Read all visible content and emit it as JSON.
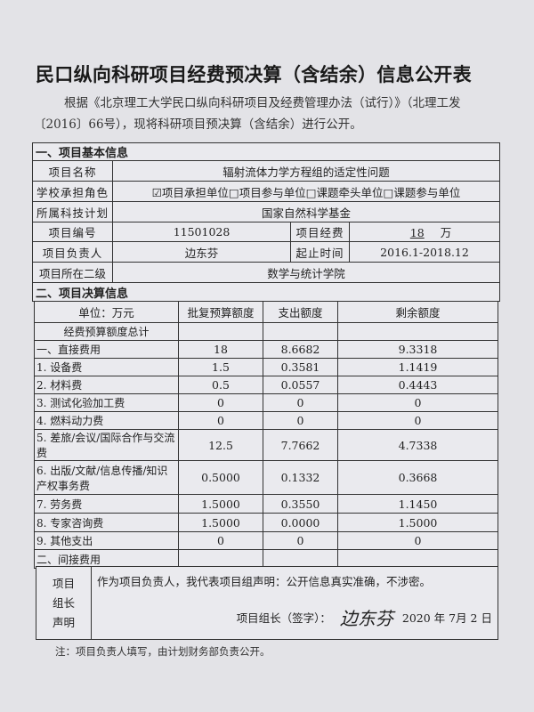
{
  "title": "民口纵向科研项目经费预决算（含结余）信息公开表",
  "intro": "根据《北京理工大学民口纵向科研项目及经费管理办法（试行）》（北理工发〔2016〕66号），现将科研项目预决算（含结余）进行公开。",
  "section1": {
    "heading": "一、项目基本信息",
    "name_label": "项目名称",
    "name": "辐射流体力学方程组的适定性问题",
    "role_label": "学校承担角色",
    "roles": [
      {
        "label": "项目承担单位",
        "checked": true
      },
      {
        "label": "项目参与单位",
        "checked": false
      },
      {
        "label": "课题牵头单位",
        "checked": false
      },
      {
        "label": "课题参与单位",
        "checked": false
      }
    ],
    "plan_label": "所属科技计划",
    "plan": "国家自然科学基金",
    "number_label": "项目编号",
    "number": "11501028",
    "funding_label": "项目经费",
    "funding": "18",
    "funding_unit": "万",
    "leader_label": "项目负责人",
    "leader": "边东芬",
    "period_label": "起止时间",
    "period": "2016.1-2018.12",
    "dept_label": "项目所在二级",
    "dept": "数学与统计学院"
  },
  "section2": {
    "heading": "二、项目决算信息",
    "headers": [
      "单位：万元",
      "批复预算额度",
      "支出额度",
      "剩余额度"
    ],
    "rows": [
      {
        "label": "经费预算额度总计",
        "budget": "",
        "spent": "",
        "remaining": ""
      },
      {
        "label": "一、直接费用",
        "budget": "18",
        "spent": "8.6682",
        "remaining": "9.3318"
      },
      {
        "label": "1. 设备费",
        "budget": "1.5",
        "spent": "0.3581",
        "remaining": "1.1419"
      },
      {
        "label": "2. 材料费",
        "budget": "0.5",
        "spent": "0.0557",
        "remaining": "0.4443"
      },
      {
        "label": "3. 测试化验加工费",
        "budget": "0",
        "spent": "0",
        "remaining": "0"
      },
      {
        "label": "4. 燃料动力费",
        "budget": "0",
        "spent": "0",
        "remaining": "0"
      },
      {
        "label": "5. 差旅/会议/国际合作与交流费",
        "budget": "12.5",
        "spent": "7.7662",
        "remaining": "4.7338"
      },
      {
        "label": "6. 出版/文献/信息传播/知识产权事务费",
        "budget": "0.5000",
        "spent": "0.1332",
        "remaining": "0.3668"
      },
      {
        "label": "7. 劳务费",
        "budget": "1.5000",
        "spent": "0.3550",
        "remaining": "1.1450"
      },
      {
        "label": "8. 专家咨询费",
        "budget": "1.5000",
        "spent": "0.0000",
        "remaining": "1.5000"
      },
      {
        "label": "9. 其他支出",
        "budget": "0",
        "spent": "0",
        "remaining": "0"
      },
      {
        "label": "二、间接费用",
        "budget": "",
        "spent": "",
        "remaining": ""
      }
    ]
  },
  "declaration": {
    "label": "项目组长声明",
    "text": "作为项目负责人，我代表项目组声明：公开信息真实准确，不涉密。",
    "sign_label": "项目组长（签字）：",
    "signature": "边东芬",
    "date": "2020 年 7月 2 日"
  },
  "note": "注：项目负责人填写，由计划财务部负责公开。"
}
